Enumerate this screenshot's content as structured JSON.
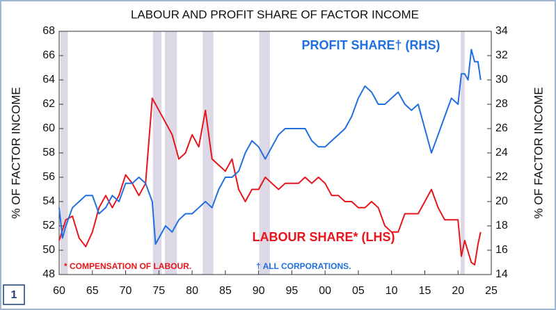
{
  "chart_data": {
    "type": "line",
    "title": "LABOUR AND PROFIT SHARE OF FACTOR INCOME",
    "ylabel": "% OF FACTOR INCOME",
    "y2label": "% OF FACTOR INCOME",
    "footnotes": [
      "* COMPENSATION OF LABOUR.",
      "† ALL CORPORATIONS."
    ],
    "chart_number": "1",
    "xlim": [
      1960,
      2025
    ],
    "xticks": [
      {
        "value": 1960,
        "label": "60"
      },
      {
        "value": 1965,
        "label": "65"
      },
      {
        "value": 1970,
        "label": "70"
      },
      {
        "value": 1975,
        "label": "75"
      },
      {
        "value": 1980,
        "label": "80"
      },
      {
        "value": 1985,
        "label": "85"
      },
      {
        "value": 1990,
        "label": "90"
      },
      {
        "value": 1995,
        "label": "95"
      },
      {
        "value": 2000,
        "label": "00"
      },
      {
        "value": 2005,
        "label": "05"
      },
      {
        "value": 2010,
        "label": "10"
      },
      {
        "value": 2015,
        "label": "15"
      },
      {
        "value": 2020,
        "label": "20"
      },
      {
        "value": 2025,
        "label": "25"
      }
    ],
    "ylim": [
      48,
      68
    ],
    "yticks": [
      48,
      50,
      52,
      54,
      56,
      58,
      60,
      62,
      64,
      66,
      68
    ],
    "y2lim": [
      14,
      34
    ],
    "y2ticks": [
      14,
      16,
      18,
      20,
      22,
      24,
      26,
      28,
      30,
      32,
      34
    ],
    "shaded_periods": [
      [
        1960.2,
        1961.3
      ],
      [
        1974.1,
        1975.4
      ],
      [
        1975.9,
        1977.7
      ],
      [
        1981.6,
        1983.2
      ],
      [
        1990.1,
        1991.7
      ],
      [
        2020.4,
        2021.0
      ]
    ],
    "shade_color": "#dcd8e6",
    "series": [
      {
        "name": "LABOUR SHARE* (LHS)",
        "color": "#e8141c",
        "axis": "y",
        "x": [
          1960,
          1961,
          1962,
          1963,
          1964,
          1965,
          1966,
          1967,
          1968,
          1969,
          1970,
          1971,
          1972,
          1973,
          1974,
          1975,
          1976,
          1977,
          1978,
          1979,
          1980,
          1981,
          1982,
          1983,
          1984,
          1985,
          1986,
          1987,
          1988,
          1989,
          1990,
          1991,
          1992,
          1993,
          1994,
          1995,
          1996,
          1997,
          1998,
          1999,
          2000,
          2001,
          2002,
          2003,
          2004,
          2005,
          2006,
          2007,
          2008,
          2009,
          2010,
          2011,
          2012,
          2013,
          2014,
          2015,
          2016,
          2017,
          2018,
          2019,
          2020,
          2020.5,
          2021,
          2022,
          2022.5,
          2023,
          2023.4
        ],
        "values": [
          50.8,
          52.5,
          52.8,
          51,
          50.3,
          51.5,
          53.5,
          54.5,
          53.5,
          54.5,
          56.2,
          55.5,
          54.5,
          55.5,
          62.5,
          61.5,
          60.5,
          59.5,
          57.5,
          58,
          59.5,
          58.5,
          61.5,
          57.5,
          57,
          56.5,
          57.5,
          55,
          54,
          55,
          55,
          56,
          55.5,
          55,
          55.5,
          55.5,
          55.5,
          56,
          55.5,
          56,
          55.5,
          54.5,
          54.5,
          54,
          54,
          53.5,
          53.5,
          54,
          53.5,
          52,
          51.5,
          51.5,
          53,
          53,
          53,
          54,
          55,
          53.5,
          52.5,
          52.5,
          52.5,
          49.5,
          50.8,
          49,
          48.8,
          50.5,
          51.5
        ]
      },
      {
        "name": "PROFIT SHARE† (RHS)",
        "color": "#1f6fe0",
        "axis": "y2",
        "x": [
          1960,
          1960.5,
          1961,
          1962,
          1963,
          1964,
          1965,
          1966,
          1967,
          1968,
          1969,
          1970,
          1971,
          1972,
          1973,
          1974,
          1974.5,
          1975,
          1976,
          1977,
          1978,
          1979,
          1980,
          1981,
          1982,
          1983,
          1984,
          1985,
          1986,
          1987,
          1988,
          1989,
          1990,
          1991,
          1992,
          1993,
          1994,
          1995,
          1996,
          1997,
          1998,
          1999,
          2000,
          2001,
          2002,
          2003,
          2004,
          2005,
          2006,
          2007,
          2008,
          2009,
          2010,
          2011,
          2012,
          2013,
          2014,
          2015,
          2016,
          2017,
          2018,
          2019,
          2020,
          2020.5,
          2021,
          2021.5,
          2022,
          2022.5,
          2023,
          2023.4
        ],
        "values": [
          19.5,
          17,
          18,
          19.5,
          20,
          20.5,
          20.5,
          19,
          19.5,
          20.5,
          20,
          21.5,
          21.5,
          22,
          21.5,
          20,
          16.5,
          17,
          18,
          17.5,
          18.5,
          19,
          19,
          19.5,
          20,
          19.5,
          21,
          22,
          22,
          22.5,
          24,
          25,
          24.5,
          23.5,
          24.5,
          25.5,
          26,
          26,
          26,
          26,
          25,
          24.5,
          24.5,
          25,
          25.5,
          26,
          27,
          28.5,
          29.5,
          29,
          28,
          28,
          28.5,
          29,
          28,
          27.5,
          28,
          26,
          24,
          25.5,
          27,
          28.5,
          28,
          30.5,
          30.5,
          30,
          32.5,
          31.5,
          31.5,
          30
        ]
      }
    ]
  }
}
